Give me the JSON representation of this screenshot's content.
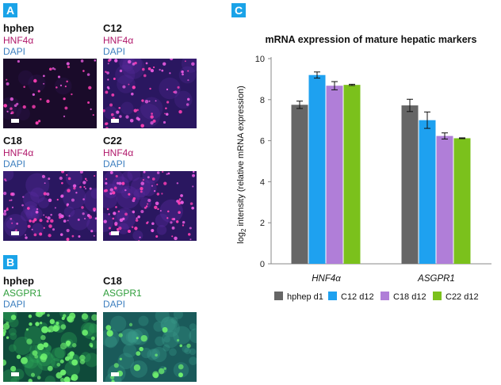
{
  "panels": {
    "A": {
      "letter": "A",
      "cells": [
        {
          "title": "hphep",
          "line1": "HNF4α",
          "line2": "DAPI"
        },
        {
          "title": "C12",
          "line1": "HNF4α",
          "line2": "DAPI"
        },
        {
          "title": "C18",
          "line1": "HNF4α",
          "line2": "DAPI"
        },
        {
          "title": "C22",
          "line1": "HNF4α",
          "line2": "DAPI"
        }
      ]
    },
    "B": {
      "letter": "B",
      "cells": [
        {
          "title": "hphep",
          "line1": "ASGPR1",
          "line2": "DAPI"
        },
        {
          "title": "C18",
          "line1": "ASGPR1",
          "line2": "DAPI"
        }
      ]
    },
    "C": {
      "letter": "C"
    }
  },
  "colors": {
    "badge": "#1aa3e8",
    "hnf_label": "#b0176a",
    "dapi_label": "#3d7fbf",
    "asgpr_label": "#2f9e3b"
  },
  "chart_data": {
    "type": "bar",
    "title": "mRNA expression of mature hepatic markers",
    "ylabel_prefix": "log",
    "ylabel_sub": "2",
    "ylabel_rest": " intensity (relative mRNA expression)",
    "xlabel": "",
    "ylim": [
      0,
      10
    ],
    "yticks": [
      0,
      2,
      4,
      6,
      8,
      10
    ],
    "categories": [
      "HNF4α",
      "ASGPR1"
    ],
    "series": [
      {
        "name": "hphep d1",
        "color": "#666666",
        "values": [
          7.75,
          7.72
        ],
        "errors": [
          0.18,
          0.3
        ]
      },
      {
        "name": "C12 d12",
        "color": "#1ea1f0",
        "values": [
          9.2,
          7.0
        ],
        "errors": [
          0.15,
          0.4
        ]
      },
      {
        "name": "C18 d12",
        "color": "#b07ed8",
        "values": [
          8.68,
          6.23
        ],
        "errors": [
          0.2,
          0.15
        ]
      },
      {
        "name": "C22 d12",
        "color": "#7bc11c",
        "values": [
          8.72,
          6.12
        ],
        "errors": [
          0.03,
          0.02
        ]
      }
    ],
    "legend_position": "bottom"
  }
}
